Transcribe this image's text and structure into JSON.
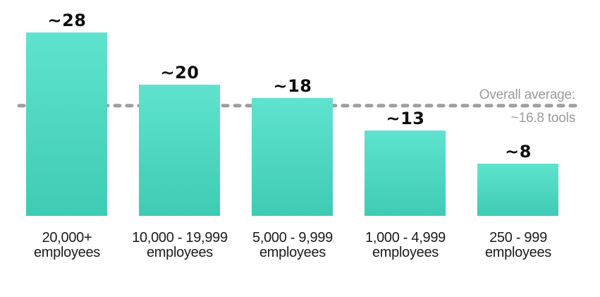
{
  "chart_data": {
    "type": "bar",
    "unit": "tools",
    "categories": [
      "20,000+ employees",
      "10,000 - 19,999 employees",
      "5,000 - 9,999 employees",
      "1,000 - 4,999 employees",
      "250 - 999 employees"
    ],
    "category_label_lines": [
      [
        "20,000+",
        "employees"
      ],
      [
        "10,000 - 19,999",
        "employees"
      ],
      [
        "5,000 - 9,999",
        "employees"
      ],
      [
        "1,000 - 4,999",
        "employees"
      ],
      [
        "250 - 999",
        "employees"
      ]
    ],
    "values": [
      28,
      20,
      18,
      13,
      8
    ],
    "value_labels": [
      "~28",
      "~20",
      "~18",
      "~13",
      "~8"
    ],
    "overall_average": {
      "value": 16.8,
      "label_line1": "Overall average:",
      "label_line2": "~16.8 tools"
    },
    "ylim": [
      0,
      30
    ],
    "gridlines": false,
    "axes_visible": false,
    "legend": "none",
    "colors": {
      "background": "#ffffff",
      "bar_gradient_top": "#5fe3ce",
      "bar_gradient_bottom": "#3ecbb4",
      "value_label": "#0e0e0e",
      "category_label": "#1b1b1b",
      "average_text": "#9b9b9b",
      "average_line": "#9e9e9e"
    }
  }
}
